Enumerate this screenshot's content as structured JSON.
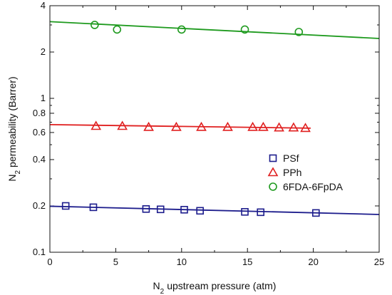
{
  "chart_data": {
    "type": "scatter",
    "title": "",
    "xlabel": "upstream pressure (atm)",
    "xlabel_prefix": "N",
    "xlabel_sub": "2",
    "ylabel": "permeability (Barrer)",
    "ylabel_prefix": "N",
    "ylabel_sub": "2",
    "xlim": [
      0,
      25
    ],
    "ylim": [
      0.1,
      4
    ],
    "yscale": "log",
    "grid": false,
    "legend_position": "right",
    "x_ticks": [
      0,
      5,
      10,
      15,
      20,
      25
    ],
    "y_ticks": [
      {
        "value": 0.1,
        "label": "0.1"
      },
      {
        "value": 0.2,
        "label": "0.2"
      },
      {
        "value": 0.4,
        "label": "0.4"
      },
      {
        "value": 0.6,
        "label": "0.6"
      },
      {
        "value": 0.8,
        "label": "0.8"
      },
      {
        "value": 1,
        "label": "1"
      },
      {
        "value": 2,
        "label": "2"
      },
      {
        "value": 4,
        "label": "4"
      }
    ],
    "series": [
      {
        "name": "PSf",
        "marker": "square",
        "color": "#1c1c8c",
        "x": [
          1.2,
          3.3,
          7.3,
          8.4,
          10.2,
          11.4,
          14.8,
          16.0,
          20.2
        ],
        "y": [
          0.2,
          0.196,
          0.191,
          0.19,
          0.189,
          0.186,
          0.183,
          0.182,
          0.18
        ],
        "fit_x": [
          0,
          25
        ],
        "fit_y": [
          0.199,
          0.176
        ]
      },
      {
        "name": "PPh",
        "marker": "triangle",
        "color": "#e02020",
        "x": [
          3.5,
          5.5,
          7.5,
          9.6,
          11.5,
          13.5,
          15.4,
          16.2,
          17.4,
          18.5,
          19.4
        ],
        "y": [
          0.66,
          0.66,
          0.65,
          0.65,
          0.65,
          0.65,
          0.65,
          0.65,
          0.645,
          0.645,
          0.64
        ],
        "fit_x": [
          0,
          19.8
        ],
        "fit_y": [
          0.675,
          0.64
        ]
      },
      {
        "name": "6FDA-6FpDA",
        "marker": "circle",
        "color": "#1e9a1e",
        "x": [
          3.4,
          5.1,
          10.0,
          14.8,
          18.9
        ],
        "y": [
          3.0,
          2.8,
          2.8,
          2.8,
          2.7
        ],
        "fit_x": [
          0,
          25
        ],
        "fit_y": [
          3.15,
          2.45
        ]
      }
    ]
  }
}
